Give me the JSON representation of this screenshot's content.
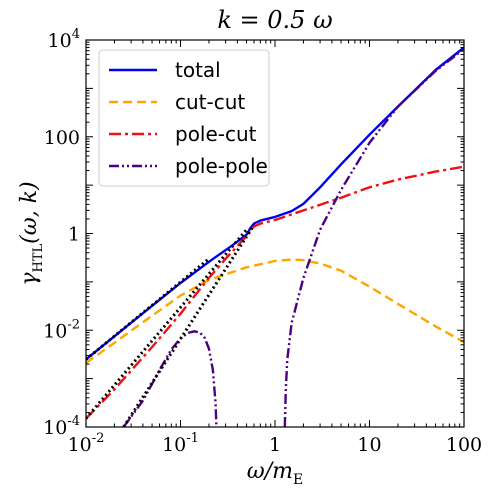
{
  "chart_data": {
    "type": "line",
    "title": "k = 0.5 ω",
    "xlabel": "ω/m_E",
    "ylabel": "γ_HTL(ω, k)",
    "xscale": "log",
    "yscale": "log",
    "xlim": [
      0.01,
      100
    ],
    "ylim": [
      0.0001,
      10000
    ],
    "grid": false,
    "legend": "top-left",
    "x_ticks": [
      0.01,
      0.1,
      1,
      10,
      100
    ],
    "x_tick_labels": [
      "10^-2",
      "10^-1",
      "1",
      "10",
      "100"
    ],
    "y_ticks": [
      0.0001,
      0.01,
      1,
      100,
      10000
    ],
    "y_tick_labels": [
      "10^-4",
      "10^-2",
      "1",
      "100",
      "10^4"
    ],
    "series": [
      {
        "name": "total",
        "color": "#0000ee",
        "dash": "solid",
        "x": [
          0.01,
          0.02,
          0.05,
          0.1,
          0.2,
          0.35,
          0.5,
          0.55,
          0.6,
          0.7,
          1,
          1.5,
          2,
          3,
          5,
          10,
          20,
          50,
          100
        ],
        "y": [
          0.0025,
          0.0075,
          0.032,
          0.095,
          0.26,
          0.56,
          0.95,
          1.3,
          1.6,
          1.85,
          2.2,
          2.9,
          4.1,
          9,
          27,
          110,
          420,
          2400,
          7000
        ]
      },
      {
        "name": "cut-cut",
        "color": "#ffa500",
        "dash": "dashed",
        "x": [
          0.01,
          0.02,
          0.05,
          0.1,
          0.2,
          0.5,
          1,
          1.5,
          2,
          3,
          5,
          10,
          20,
          50,
          100
        ],
        "y": [
          0.0021,
          0.0055,
          0.02,
          0.052,
          0.11,
          0.2,
          0.27,
          0.29,
          0.28,
          0.24,
          0.17,
          0.08,
          0.035,
          0.012,
          0.0057
        ]
      },
      {
        "name": "pole-cut",
        "color": "#ee1111",
        "dash": "dashdot",
        "x": [
          0.01,
          0.02,
          0.05,
          0.1,
          0.2,
          0.3,
          0.4,
          0.5,
          0.55,
          0.6,
          0.7,
          1,
          2,
          5,
          10,
          20,
          50,
          100
        ],
        "y": [
          0.00015,
          0.0006,
          0.0045,
          0.022,
          0.12,
          0.3,
          0.55,
          0.9,
          1.15,
          1.4,
          1.6,
          1.9,
          3,
          5.5,
          9,
          13,
          19,
          24
        ]
      },
      {
        "name": "pole-pole",
        "color": "#4b0082",
        "dash": "dashdotdot",
        "x": [
          0.025,
          0.04,
          0.06,
          0.08,
          0.1,
          0.12,
          0.14,
          0.16,
          0.18,
          0.2,
          0.22,
          0.235,
          0.24,
          null,
          1.27,
          1.3,
          1.35,
          1.5,
          2,
          3,
          5,
          10,
          20,
          50,
          100
        ],
        "y": [
          0.0001,
          0.00035,
          0.0015,
          0.004,
          0.0068,
          0.0088,
          0.0095,
          0.009,
          0.007,
          0.0042,
          0.0015,
          0.0003,
          0.0001,
          null,
          0.0001,
          0.0006,
          0.0025,
          0.014,
          0.12,
          1.2,
          8,
          75,
          420,
          2300,
          6500
        ]
      },
      {
        "name": "",
        "color": "#000000",
        "dash": "dotted",
        "x": [
          0.01,
          0.2
        ],
        "y": [
          0.0025,
          0.3
        ]
      },
      {
        "name": "",
        "color": "#000000",
        "dash": "dotted",
        "x": [
          0.01,
          0.5
        ],
        "y": [
          0.00015,
          1.2
        ]
      },
      {
        "name": "",
        "color": "#000000",
        "dash": "dotted",
        "x": [
          0.025,
          0.6
        ],
        "y": [
          0.0001,
          1.5
        ]
      }
    ]
  }
}
